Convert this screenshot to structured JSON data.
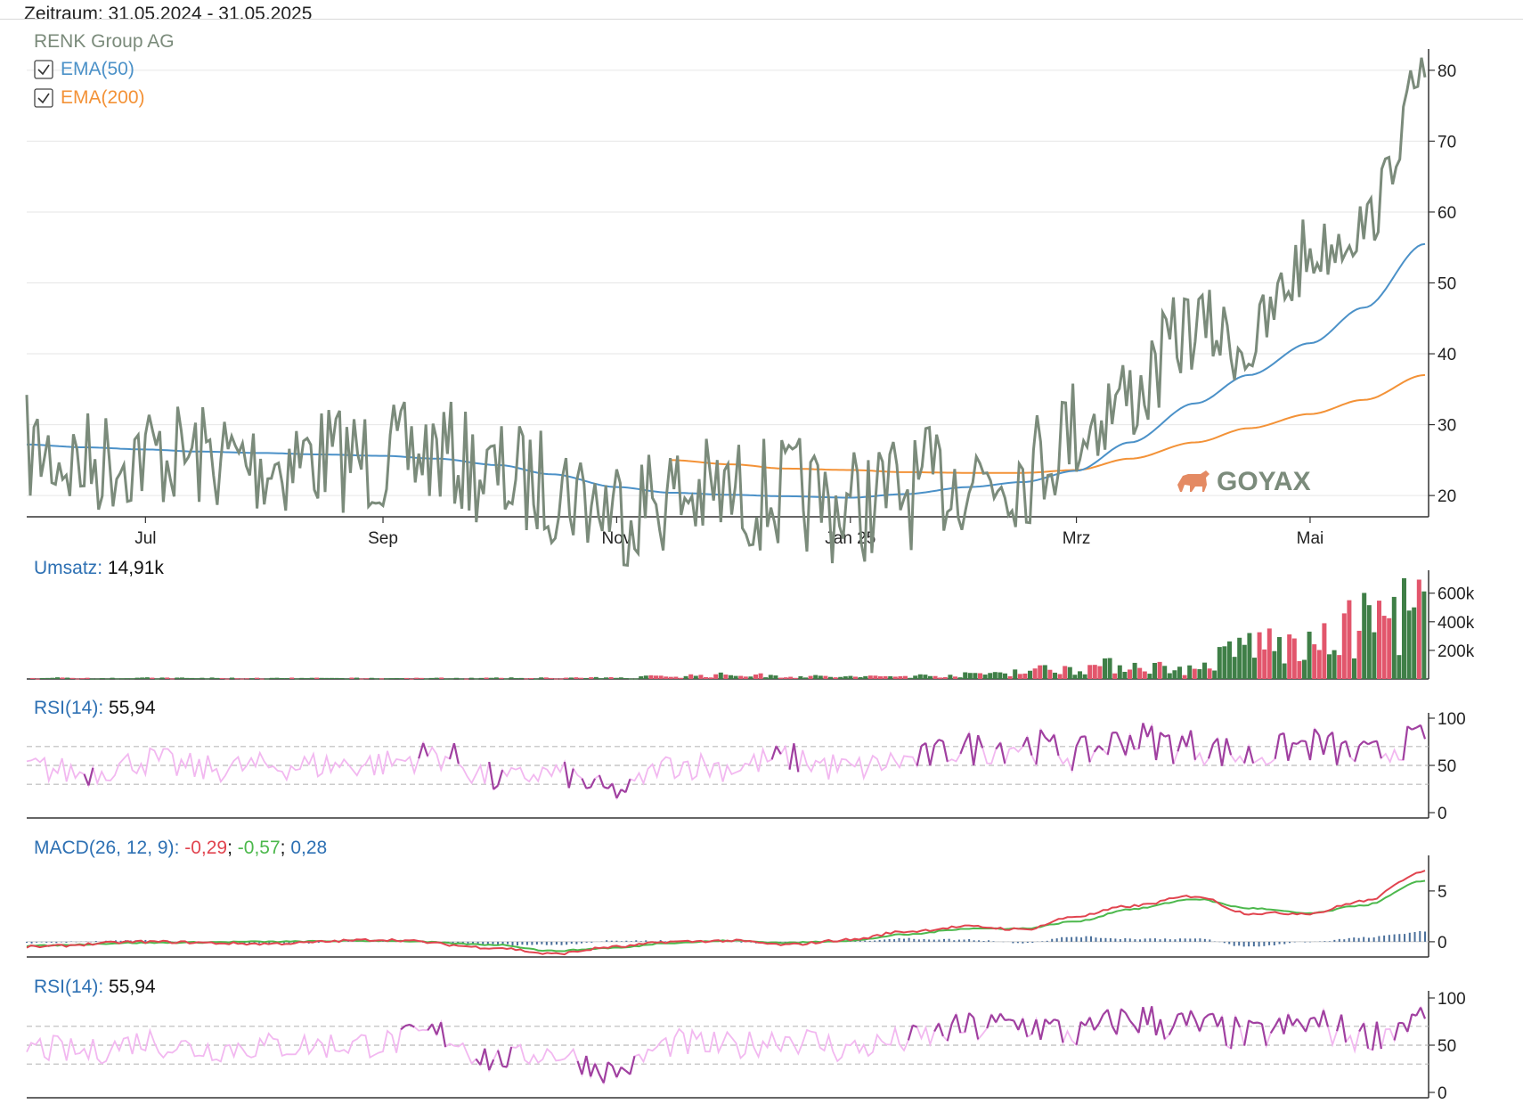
{
  "header": {
    "period_label": "Zeitraum: 31.05.2024 - 31.05.2025"
  },
  "colors": {
    "price": "#7b8b7b",
    "ema50": "#4b91c8",
    "ema200": "#f39237",
    "vol_up": "#3f7f47",
    "vol_down": "#e2566c",
    "rsi_light": "#f2b8f0",
    "rsi_dark": "#a040a0",
    "macd_red": "#e1444f",
    "macd_green": "#4cb84c",
    "histogram": "#4a6f9a",
    "label_blue": "#2d70b3",
    "logo": "#e48a63"
  },
  "logo": {
    "text": "GOYAX",
    "icon": "bull-icon"
  },
  "chart_data": [
    {
      "type": "line",
      "id": "price",
      "title": "RENK Group AG",
      "ylim": [
        17,
        83
      ],
      "yticks": [
        20,
        30,
        40,
        50,
        60,
        70,
        80
      ],
      "x_dates": [
        "2024-05-31",
        "2024-06-15",
        "2024-07-01",
        "2024-07-15",
        "2024-08-01",
        "2024-08-15",
        "2024-09-01",
        "2024-09-15",
        "2024-10-01",
        "2024-10-15",
        "2024-11-01",
        "2024-11-15",
        "2024-12-01",
        "2024-12-15",
        "2025-01-01",
        "2025-01-15",
        "2025-02-01",
        "2025-02-15",
        "2025-03-01",
        "2025-03-15",
        "2025-04-01",
        "2025-04-15",
        "2025-05-01",
        "2025-05-15",
        "2025-05-31"
      ],
      "xticks": [
        {
          "label": "Jul",
          "date": "2024-07-01"
        },
        {
          "label": "Sep",
          "date": "2024-09-01"
        },
        {
          "label": "Nov",
          "date": "2024-11-01"
        },
        {
          "label": "Jan 25",
          "date": "2025-01-01"
        },
        {
          "label": "Mrz",
          "date": "2025-03-01"
        },
        {
          "label": "Mai",
          "date": "2025-05-01"
        }
      ],
      "series": [
        {
          "name": "RENK Group AG",
          "values": [
            26.5,
            24.5,
            26,
            25.5,
            24.5,
            25.5,
            25,
            26,
            22.5,
            21.5,
            18.5,
            20,
            20,
            20,
            18.5,
            20.5,
            23,
            23.5,
            29.5,
            34,
            44,
            41,
            54,
            58,
            79
          ]
        },
        {
          "name": "EMA(50)",
          "values": [
            27.2,
            26.8,
            26.5,
            26.2,
            26,
            25.8,
            25.6,
            25.2,
            24.3,
            23,
            21.2,
            20.4,
            20.1,
            19.9,
            19.7,
            20.2,
            21.2,
            21.9,
            23.5,
            27.5,
            33,
            37,
            41.5,
            46.5,
            55.5
          ]
        },
        {
          "name": "EMA(200)",
          "values": [
            null,
            null,
            null,
            null,
            null,
            null,
            null,
            null,
            null,
            null,
            null,
            25,
            24.4,
            23.8,
            23.6,
            23.3,
            23.2,
            23.2,
            23.6,
            25.2,
            27.5,
            29.5,
            31.5,
            33.5,
            37
          ]
        }
      ]
    },
    {
      "type": "bar",
      "id": "volume",
      "label": "Umsatz",
      "value_text": "14,91k",
      "ylim": [
        0,
        760000
      ],
      "yticks": [
        {
          "label": "200k",
          "value": 200000
        },
        {
          "label": "400k",
          "value": 400000
        },
        {
          "label": "600k",
          "value": 600000
        }
      ],
      "x_dates": [
        "2024-05-31",
        "2024-07-01",
        "2024-08-01",
        "2024-09-01",
        "2024-10-01",
        "2024-11-01",
        "2024-11-15",
        "2024-12-01",
        "2024-12-15",
        "2025-01-01",
        "2025-01-15",
        "2025-02-01",
        "2025-02-15",
        "2025-03-01",
        "2025-03-15",
        "2025-04-01",
        "2025-04-15",
        "2025-05-01",
        "2025-05-15",
        "2025-05-31"
      ],
      "values": [
        10000,
        10000,
        8000,
        8000,
        9000,
        12000,
        20000,
        30000,
        20000,
        15000,
        20000,
        30000,
        60000,
        80000,
        100000,
        60000,
        260000,
        200000,
        400000,
        500000
      ]
    },
    {
      "type": "line",
      "id": "rsi_1",
      "label": "RSI(14)",
      "value_text": "55,94",
      "ylim": [
        0,
        100
      ],
      "yticks": [
        0,
        50,
        100
      ],
      "guides": [
        30,
        50,
        70
      ],
      "x_dates": [
        "2024-05-31",
        "2024-06-15",
        "2024-07-01",
        "2024-07-15",
        "2024-08-01",
        "2024-08-15",
        "2024-09-01",
        "2024-09-15",
        "2024-10-01",
        "2024-10-15",
        "2024-11-01",
        "2024-11-15",
        "2024-12-01",
        "2024-12-15",
        "2025-01-01",
        "2025-01-15",
        "2025-02-01",
        "2025-02-15",
        "2025-03-01",
        "2025-03-15",
        "2025-04-01",
        "2025-04-15",
        "2025-05-01",
        "2025-05-15",
        "2025-05-31"
      ],
      "values": [
        48,
        42,
        55,
        46,
        49,
        50,
        52,
        62,
        35,
        42,
        22,
        52,
        48,
        58,
        46,
        55,
        68,
        72,
        62,
        78,
        70,
        60,
        72,
        60,
        78
      ]
    },
    {
      "type": "line",
      "id": "macd",
      "label": "MACD(26, 12, 9)",
      "value_texts": [
        "-0,29",
        "-0,57",
        "0,28"
      ],
      "ylim": [
        -1.5,
        8.5
      ],
      "yticks": [
        0,
        5
      ],
      "x_dates": [
        "2024-05-31",
        "2024-07-01",
        "2024-08-01",
        "2024-09-01",
        "2024-10-01",
        "2024-10-15",
        "2024-11-01",
        "2024-11-15",
        "2024-12-01",
        "2024-12-15",
        "2025-01-01",
        "2025-01-15",
        "2025-02-01",
        "2025-02-15",
        "2025-03-01",
        "2025-03-15",
        "2025-04-01",
        "2025-04-15",
        "2025-05-01",
        "2025-05-15",
        "2025-05-31"
      ],
      "series": [
        {
          "values": [
            -0.5,
            0,
            -0.2,
            0.2,
            -0.6,
            -1.2,
            -0.5,
            0,
            0.1,
            -0.3,
            0.2,
            1,
            1.5,
            1.2,
            2.5,
            3.5,
            4.5,
            2.8,
            2.8,
            4,
            7
          ]
        },
        {
          "values": [
            -0.4,
            -0.1,
            0,
            0.1,
            -0.3,
            -0.9,
            -0.6,
            -0.1,
            0.1,
            -0.1,
            0.1,
            0.7,
            1.3,
            1.3,
            2,
            3.2,
            4.2,
            3.3,
            2.8,
            3.6,
            6
          ]
        },
        {
          "values": [
            -0.1,
            0.1,
            -0.2,
            0.1,
            -0.3,
            -0.3,
            0.1,
            0.1,
            0,
            -0.2,
            0.1,
            0.3,
            0.2,
            -0.1,
            0.5,
            0.3,
            0.3,
            -0.5,
            0,
            0.4,
            1
          ]
        }
      ]
    },
    {
      "type": "line",
      "id": "rsi_2",
      "label": "RSI(14)",
      "value_text": "55,94",
      "ylim": [
        0,
        100
      ],
      "yticks": [
        0,
        50,
        100
      ],
      "guides": [
        30,
        50,
        70
      ],
      "x_dates": [
        "2024-05-31",
        "2024-06-15",
        "2024-07-01",
        "2024-07-15",
        "2024-08-01",
        "2024-08-15",
        "2024-09-01",
        "2024-09-15",
        "2024-10-01",
        "2024-10-15",
        "2024-11-01",
        "2024-11-15",
        "2024-12-01",
        "2024-12-15",
        "2025-01-01",
        "2025-01-15",
        "2025-02-01",
        "2025-02-15",
        "2025-03-01",
        "2025-03-15",
        "2025-04-01",
        "2025-04-15",
        "2025-05-01",
        "2025-05-15",
        "2025-05-31"
      ],
      "values": [
        48,
        42,
        55,
        46,
        49,
        50,
        52,
        62,
        35,
        42,
        22,
        52,
        48,
        58,
        46,
        55,
        68,
        72,
        62,
        78,
        70,
        60,
        72,
        60,
        78
      ]
    }
  ]
}
